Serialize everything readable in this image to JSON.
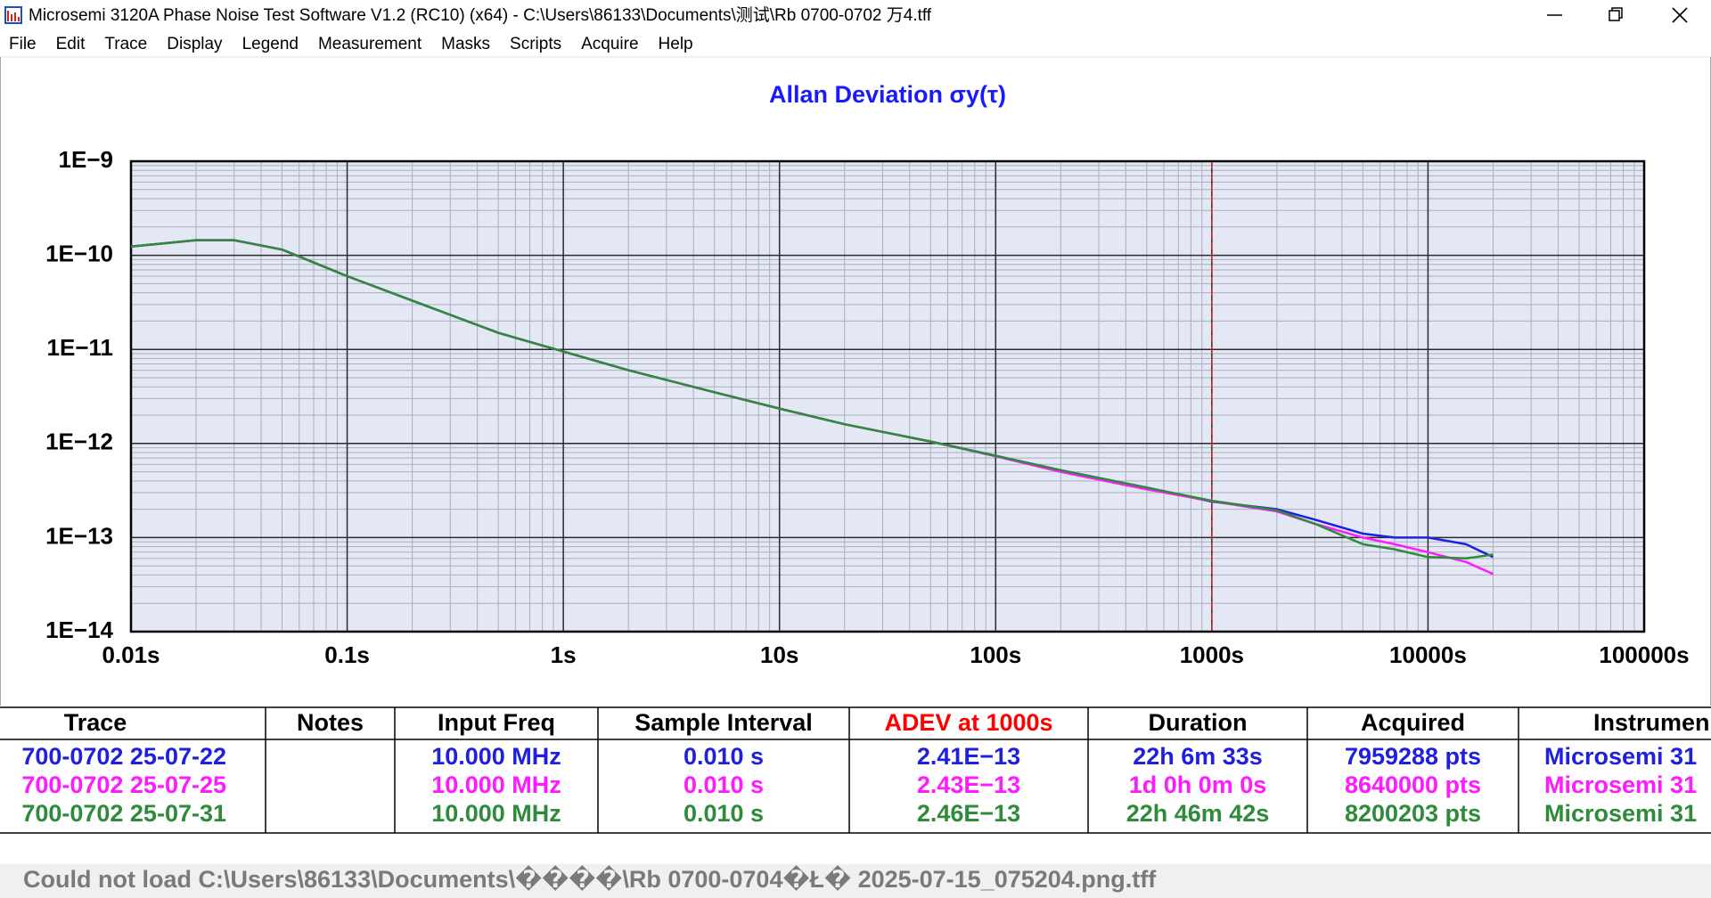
{
  "window": {
    "title": "Microsemi 3120A Phase Noise Test Software V1.2 (RC10) (x64) - C:\\Users\\86133\\Documents\\测试\\Rb 0700-0702 万4.tff",
    "menu": [
      "File",
      "Edit",
      "Trace",
      "Display",
      "Legend",
      "Measurement",
      "Masks",
      "Scripts",
      "Acquire",
      "Help"
    ]
  },
  "chart_data": {
    "type": "line",
    "title": "Allan Deviation σy(τ)",
    "title_color": "#1a1aff",
    "xscale": "log",
    "yscale": "log",
    "grid": true,
    "minor_grid": true,
    "background": "#e4e8f4",
    "xlim": [
      0.01,
      100000
    ],
    "ylim": [
      1e-14,
      1e-09
    ],
    "xticks": [
      {
        "value": 0.01,
        "label": "0.01s"
      },
      {
        "value": 0.1,
        "label": "0.1s"
      },
      {
        "value": 1,
        "label": "1s"
      },
      {
        "value": 10,
        "label": "10s"
      },
      {
        "value": 100,
        "label": "100s"
      },
      {
        "value": 1000,
        "label": "1000s"
      },
      {
        "value": 10000,
        "label": "10000s"
      },
      {
        "value": 100000,
        "label": "100000s"
      }
    ],
    "yticks": [
      {
        "value": 1e-14,
        "label": "1E−14"
      },
      {
        "value": 1e-13,
        "label": "1E−13"
      },
      {
        "value": 1e-12,
        "label": "1E−12"
      },
      {
        "value": 1e-11,
        "label": "1E−11"
      },
      {
        "value": 1e-10,
        "label": "1E−10"
      },
      {
        "value": 1e-09,
        "label": "1E−9"
      }
    ],
    "cursor_x": 1000,
    "cursor_color": "#e02020",
    "x": [
      0.01,
      0.02,
      0.03,
      0.05,
      0.1,
      0.2,
      0.5,
      1,
      2,
      5,
      10,
      20,
      50,
      100,
      200,
      500,
      1000,
      2000,
      3000,
      5000,
      7000,
      10000,
      15000,
      20000
    ],
    "series": [
      {
        "color": "#1f1fe0",
        "values": [
          1.24e-10,
          1.45e-10,
          1.45e-10,
          1.15e-10,
          6e-11,
          3.3e-11,
          1.5e-11,
          9.5e-12,
          6e-12,
          3.5e-12,
          2.35e-12,
          1.6e-12,
          1.05e-12,
          7.4e-13,
          5.2e-13,
          3.4e-13,
          2.41e-13,
          2e-13,
          1.55e-13,
          1.1e-13,
          1e-13,
          1e-13,
          8.5e-14,
          6.2e-14
        ]
      },
      {
        "color": "#ff1aff",
        "values": [
          1.24e-10,
          1.45e-10,
          1.45e-10,
          1.15e-10,
          6e-11,
          3.3e-11,
          1.5e-11,
          9.5e-12,
          6e-12,
          3.5e-12,
          2.35e-12,
          1.6e-12,
          1.05e-12,
          7.3e-13,
          5e-13,
          3.25e-13,
          2.43e-13,
          1.9e-13,
          1.4e-13,
          1e-13,
          8.5e-14,
          7e-14,
          5.5e-14,
          4.1e-14
        ]
      },
      {
        "color": "#2e8b3a",
        "values": [
          1.24e-10,
          1.45e-10,
          1.45e-10,
          1.15e-10,
          6e-11,
          3.3e-11,
          1.5e-11,
          9.5e-12,
          6e-12,
          3.5e-12,
          2.35e-12,
          1.6e-12,
          1.05e-12,
          7.4e-13,
          5.2e-13,
          3.4e-13,
          2.46e-13,
          1.95e-13,
          1.4e-13,
          8.5e-14,
          7.5e-14,
          6.2e-14,
          6e-14,
          6.6e-14
        ]
      }
    ]
  },
  "table": {
    "headers": [
      "Trace",
      "Notes",
      "Input Freq",
      "Sample Interval",
      "ADEV at 1000s",
      "Duration",
      "Acquired",
      "Instrumen"
    ],
    "header_colors": [
      "#000000",
      "#000000",
      "#000000",
      "#000000",
      "#ff0000",
      "#000000",
      "#000000",
      "#000000"
    ],
    "row_colors": [
      "#1f1fe0",
      "#ff1aff",
      "#2e8b3a"
    ],
    "rows": [
      [
        "700-0702  25-07-22",
        "",
        "10.000 MHz",
        "0.010 s",
        "2.41E−13",
        "22h 6m 33s",
        "7959288 pts",
        "Microsemi 31"
      ],
      [
        "700-0702  25-07-25",
        "",
        "10.000 MHz",
        "0.010 s",
        "2.43E−13",
        "1d 0h 0m 0s",
        "8640000 pts",
        "Microsemi 31"
      ],
      [
        "700-0702  25-07-31",
        "",
        "10.000 MHz",
        "0.010 s",
        "2.46E−13",
        "22h 46m 42s",
        "8200203 pts",
        "Microsemi 31"
      ]
    ]
  },
  "status": "Could not load C:\\Users\\86133\\Documents\\����\\Rb 0700-0704�Ł� 2025-07-15_075204.png.tff"
}
